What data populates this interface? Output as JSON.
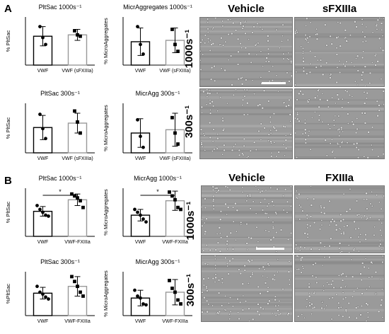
{
  "panels": [
    {
      "letter": "A",
      "charts": [
        {
          "title": "PltSac 1000s⁻¹",
          "ylabel": "% PltSac",
          "categories": [
            "VWF",
            "VWF (sFXIIIa)"
          ],
          "means": [
            21,
            22
          ],
          "errors": [
            7,
            4
          ],
          "points": [
            [
              28,
              20,
              15
            ],
            [
              25,
              22,
              21
            ]
          ],
          "ylim": [
            0,
            35
          ],
          "significance": ""
        },
        {
          "title": "MicrAggregates 1000s⁻¹",
          "ylabel": "% MicroAggregates",
          "categories": [
            "VWF",
            "VWF (sFXIIIa)"
          ],
          "means": [
            17,
            18
          ],
          "errors": [
            10,
            9
          ],
          "points": [
            [
              28,
              15,
              8
            ],
            [
              26,
              15,
              10
            ]
          ],
          "ylim": [
            0,
            35
          ],
          "significance": ""
        },
        {
          "title": "PltSac 300s⁻¹",
          "ylabel": "% PltSac",
          "categories": [
            "VWF",
            "VWF (sFXIIIa)"
          ],
          "means": [
            23,
            27
          ],
          "errors": [
            11,
            9
          ],
          "points": [
            [
              35,
              22,
              13
            ],
            [
              38,
              28,
              18
            ]
          ],
          "ylim": [
            0,
            45
          ],
          "significance": ""
        },
        {
          "title": "MicrAgg 300s⁻¹",
          "ylabel": "% MicroAggregates",
          "categories": [
            "VWF",
            "VWF (sFXIIIa)"
          ],
          "means": [
            18,
            21
          ],
          "errors": [
            13,
            15
          ],
          "points": [
            [
              30,
              15,
              5
            ],
            [
              32,
              18,
              8
            ]
          ],
          "ylim": [
            0,
            45
          ],
          "significance": ""
        }
      ]
    },
    {
      "letter": "B",
      "charts": [
        {
          "title": "PltSac 1000s⁻¹",
          "ylabel": "% PltSac",
          "categories": [
            "VWF",
            "VWF-FXIIIa"
          ],
          "means": [
            26,
            38
          ],
          "errors": [
            5,
            6
          ],
          "points": [
            [
              32,
              28,
              25,
              22,
              21
            ],
            [
              44,
              42,
              40,
              37,
              30
            ]
          ],
          "ylim": [
            0,
            50
          ],
          "significance": "*"
        },
        {
          "title": "MicrAgg 1000s⁻¹",
          "ylabel": "% MicroAggregates",
          "categories": [
            "VWF",
            "VWF-FXIIIa"
          ],
          "means": [
            22,
            37
          ],
          "errors": [
            6,
            10
          ],
          "points": [
            [
              28,
              25,
              22,
              18,
              15
            ],
            [
              46,
              42,
              38,
              30,
              28
            ]
          ],
          "ylim": [
            0,
            50
          ],
          "significance": "*"
        },
        {
          "title": "PltSac 300s⁻¹",
          "ylabel": "%PltSac",
          "categories": [
            "VWF",
            "VWF-FXIIIa"
          ],
          "means": [
            23,
            30
          ],
          "errors": [
            6,
            10
          ],
          "points": [
            [
              30,
              24,
              22,
              19,
              17
            ],
            [
              40,
              35,
              30,
              24,
              20
            ]
          ],
          "ylim": [
            0,
            45
          ],
          "significance": ""
        },
        {
          "title": "MicrAgg 300s⁻¹",
          "ylabel": "% MicroAggregates",
          "categories": [
            "VWF",
            "VWF-FXIIIa"
          ],
          "means": [
            18,
            24
          ],
          "errors": [
            8,
            13
          ],
          "points": [
            [
              26,
              20,
              18,
              12,
              11
            ],
            [
              36,
              28,
              24,
              16,
              12
            ]
          ],
          "ylim": [
            0,
            45
          ],
          "significance": ""
        }
      ]
    }
  ],
  "micrographs": {
    "A": {
      "col1": "Vehicle",
      "col2": "sFXIIIa",
      "row1": "1000s⁻¹",
      "row2": "300s⁻¹"
    },
    "B": {
      "col1": "Vehicle",
      "col2": "FXIIIa",
      "row1": "1000s⁻¹",
      "row2": "300s⁻¹"
    }
  },
  "chart_data": [
    {
      "type": "bar",
      "title": "PltSac 1000s⁻¹",
      "ylabel": "% PltSac",
      "categories": [
        "VWF",
        "VWF (sFXIIIa)"
      ],
      "values": [
        21,
        22
      ],
      "error": [
        7,
        4
      ],
      "ylim": [
        0,
        35
      ]
    },
    {
      "type": "bar",
      "title": "MicrAggregates 1000s⁻¹",
      "ylabel": "% MicroAggregates",
      "categories": [
        "VWF",
        "VWF (sFXIIIa)"
      ],
      "values": [
        17,
        18
      ],
      "error": [
        10,
        9
      ],
      "ylim": [
        0,
        35
      ]
    },
    {
      "type": "bar",
      "title": "PltSac 300s⁻¹",
      "ylabel": "% PltSac",
      "categories": [
        "VWF",
        "VWF (sFXIIIa)"
      ],
      "values": [
        23,
        27
      ],
      "error": [
        11,
        9
      ],
      "ylim": [
        0,
        45
      ]
    },
    {
      "type": "bar",
      "title": "MicrAgg 300s⁻¹",
      "ylabel": "% MicroAggregates",
      "categories": [
        "VWF",
        "VWF (sFXIIIa)"
      ],
      "values": [
        18,
        21
      ],
      "error": [
        13,
        15
      ],
      "ylim": [
        0,
        45
      ]
    },
    {
      "type": "bar",
      "title": "PltSac 1000s⁻¹",
      "ylabel": "% PltSac",
      "categories": [
        "VWF",
        "VWF-FXIIIa"
      ],
      "values": [
        26,
        38
      ],
      "error": [
        5,
        6
      ],
      "ylim": [
        0,
        50
      ],
      "annotation": "*"
    },
    {
      "type": "bar",
      "title": "MicrAgg 1000s⁻¹",
      "ylabel": "% MicroAggregates",
      "categories": [
        "VWF",
        "VWF-FXIIIa"
      ],
      "values": [
        22,
        37
      ],
      "error": [
        6,
        10
      ],
      "ylim": [
        0,
        50
      ],
      "annotation": "*"
    },
    {
      "type": "bar",
      "title": "PltSac 300s⁻¹",
      "ylabel": "%PltSac",
      "categories": [
        "VWF",
        "VWF-FXIIIa"
      ],
      "values": [
        23,
        30
      ],
      "error": [
        6,
        10
      ],
      "ylim": [
        0,
        45
      ]
    },
    {
      "type": "bar",
      "title": "MicrAgg 300s⁻¹",
      "ylabel": "% MicroAggregates",
      "categories": [
        "VWF",
        "VWF-FXIIIa"
      ],
      "values": [
        18,
        24
      ],
      "error": [
        8,
        13
      ],
      "ylim": [
        0,
        45
      ]
    }
  ]
}
